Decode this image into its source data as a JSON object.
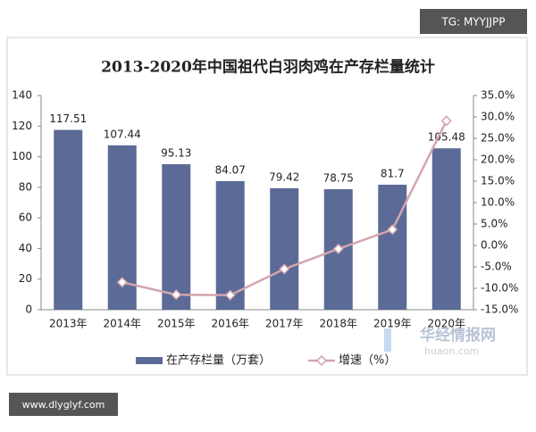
{
  "chart_data": {
    "type": "bar",
    "title": "2013-2020年中国祖代白羽肉鸡在产存栏量统计",
    "categories": [
      "2013年",
      "2014年",
      "2015年",
      "2016年",
      "2017年",
      "2018年",
      "2019年",
      "2020年"
    ],
    "series": [
      {
        "name": "在产存栏量（万套）",
        "color": "#5b6a96",
        "values": [
          117.51,
          107.44,
          95.13,
          84.07,
          79.42,
          78.75,
          81.7,
          105.48
        ]
      },
      {
        "name": "增速（%）",
        "color": "#d3a5ad",
        "type": "line",
        "axis": "y2",
        "values": [
          null,
          -8.6,
          -11.5,
          -11.6,
          -5.5,
          -0.8,
          3.7,
          29.1
        ]
      }
    ],
    "ylim": [
      0,
      140
    ],
    "yticks": [
      0,
      20,
      40,
      60,
      80,
      100,
      120,
      140
    ],
    "y2lim": [
      -15,
      35
    ],
    "y2ticks": [
      {
        "value": -15,
        "label": "-15.0%"
      },
      {
        "value": -10,
        "label": "-10.0%"
      },
      {
        "value": -5,
        "label": "-5.0%"
      },
      {
        "value": 0,
        "label": "0.0%"
      },
      {
        "value": 5,
        "label": "5.0%"
      },
      {
        "value": 10,
        "label": "10.0%"
      },
      {
        "value": 15,
        "label": "15.0%"
      },
      {
        "value": 20,
        "label": "20.0%"
      },
      {
        "value": 25,
        "label": "25.0%"
      },
      {
        "value": 30,
        "label": "30.0%"
      },
      {
        "value": 35,
        "label": "35.0%"
      }
    ],
    "legend": "bottom"
  },
  "watermarks": {
    "top": "TG: MYYJJPP",
    "bottom": "www.dlyglyf.com",
    "logo": "华经情报网",
    "logo_sub": "huaon.com"
  }
}
